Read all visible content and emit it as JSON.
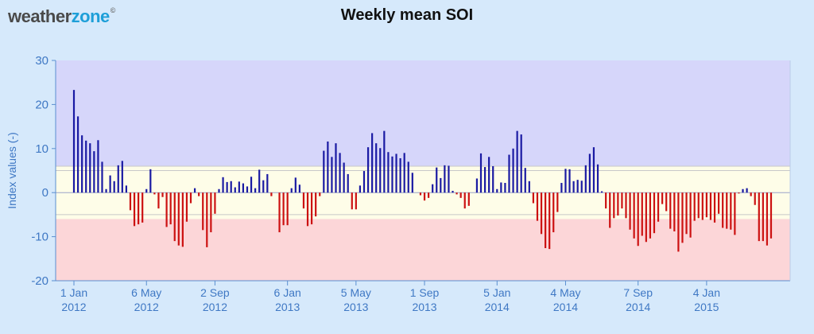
{
  "brand": {
    "part1": "weather",
    "part2": "zone",
    "mark": "©"
  },
  "chart_data": {
    "type": "bar",
    "title": "Weekly mean SOI",
    "ylabel": "Index values (-)",
    "ylim": [
      -20,
      30
    ],
    "yticks": [
      -20,
      -10,
      0,
      10,
      20,
      30
    ],
    "bands": [
      {
        "from": 6,
        "to": 30,
        "color": "#d6d6fa"
      },
      {
        "from": -6,
        "to": 6,
        "color": "#fefde8"
      },
      {
        "from": -20,
        "to": -6,
        "color": "#fcd6d8"
      }
    ],
    "band_lines": [
      6,
      5,
      -5
    ],
    "positive_color": "#1a1aa3",
    "negative_color": "#cc1111",
    "xticks": [
      {
        "index": 0,
        "line1": "1 Jan",
        "line2": "2012"
      },
      {
        "index": 18,
        "line1": "6 May",
        "line2": "2012"
      },
      {
        "index": 35,
        "line1": "2 Sep",
        "line2": "2012"
      },
      {
        "index": 53,
        "line1": "6 Jan",
        "line2": "2013"
      },
      {
        "index": 70,
        "line1": "5 May",
        "line2": "2013"
      },
      {
        "index": 87,
        "line1": "1 Sep",
        "line2": "2013"
      },
      {
        "index": 105,
        "line1": "5 Jan",
        "line2": "2014"
      },
      {
        "index": 122,
        "line1": "4 May",
        "line2": "2014"
      },
      {
        "index": 140,
        "line1": "7 Sep",
        "line2": "2014"
      },
      {
        "index": 157,
        "line1": "4 Jan",
        "line2": "2015"
      }
    ],
    "values": [
      23.3,
      17.3,
      13.0,
      11.8,
      11.2,
      9.4,
      11.9,
      7.0,
      0.8,
      3.9,
      2.6,
      6.2,
      7.2,
      1.6,
      -4.0,
      -7.6,
      -7.2,
      -6.8,
      0.8,
      5.3,
      -0.4,
      -3.6,
      -1.0,
      -7.8,
      -7.2,
      -11.0,
      -12.0,
      -12.3,
      -6.6,
      -2.4,
      1.0,
      -0.8,
      -8.5,
      -12.4,
      -9.0,
      -4.8,
      0.8,
      3.5,
      2.4,
      2.6,
      1.2,
      2.5,
      2.1,
      1.4,
      3.6,
      1.0,
      5.2,
      2.8,
      4.2,
      -0.8,
      0.0,
      -9.0,
      -7.4,
      -7.4,
      1.0,
      3.4,
      1.8,
      -3.6,
      -7.6,
      -7.2,
      -5.4,
      -0.8,
      9.5,
      11.6,
      8.1,
      11.2,
      9.0,
      6.8,
      4.2,
      -3.8,
      -3.8,
      1.6,
      4.9,
      10.3,
      13.5,
      11.2,
      10.1,
      14.0,
      9.2,
      8.2,
      8.8,
      7.8,
      9.0,
      7.0,
      4.5,
      0.0,
      -0.6,
      -1.8,
      -1.2,
      1.9,
      5.7,
      3.3,
      6.2,
      6.1,
      0.4,
      -0.4,
      -1.2,
      -3.6,
      -3.0,
      0.0,
      3.2,
      8.9,
      5.8,
      8.1,
      6.0,
      0.8,
      2.3,
      2.2,
      8.6,
      10.0,
      14.0,
      13.2,
      5.6,
      2.6,
      -2.4,
      -6.4,
      -9.4,
      -12.6,
      -12.8,
      -9.0,
      -4.4,
      2.2,
      5.4,
      5.3,
      2.6,
      2.9,
      2.7,
      6.2,
      8.8,
      10.3,
      6.4,
      0.3,
      -3.6,
      -8.0,
      -5.8,
      -5.2,
      -3.6,
      -5.8,
      -8.4,
      -10.4,
      -12.1,
      -9.8,
      -11.2,
      -10.4,
      -9.2,
      -6.6,
      -2.6,
      -4.2,
      -8.2,
      -8.8,
      -13.4,
      -11.4,
      -9.4,
      -10.2,
      -6.4,
      -5.8,
      -6.2,
      -5.6,
      -6.2,
      -6.8,
      -4.8,
      -8.0,
      -8.2,
      -8.4,
      -9.6,
      -0.2,
      0.8,
      1.0,
      -0.8,
      -2.8,
      -11.0,
      -11.0,
      -12.0,
      -10.4
    ]
  }
}
